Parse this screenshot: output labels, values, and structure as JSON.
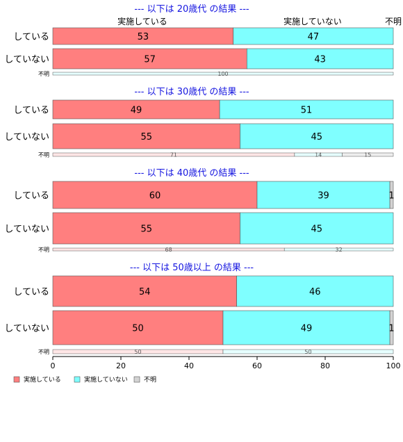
{
  "chart_data": {
    "type": "bar",
    "stacked": true,
    "orientation": "horizontal",
    "xlim": [
      0,
      100
    ],
    "x_ticks": [
      0,
      20,
      40,
      60,
      80,
      100
    ],
    "legend_position": "bottom-left",
    "top_labels": [
      "実施している",
      "実施していない",
      "不明"
    ],
    "colors": {
      "実施している": "#FF7F7F",
      "実施していない": "#7FFFFF",
      "不明": "#D3D3D3"
    },
    "legend": [
      {
        "name": "実施している",
        "color": "#FF7F7F"
      },
      {
        "name": "実施していない",
        "color": "#7FFFFF"
      },
      {
        "name": "不明",
        "color": "#D3D3D3"
      }
    ],
    "panels": [
      {
        "title": "--- 以下は 20歳代 の結果 ---",
        "rows": [
          {
            "label": "している",
            "values": [
              53,
              47,
              0
            ],
            "labels": [
              "53",
              "47",
              ""
            ]
          },
          {
            "label": "していない",
            "values": [
              57,
              43,
              0
            ],
            "labels": [
              "57",
              "43",
              ""
            ]
          },
          {
            "label": "不明",
            "small": true,
            "values": [
              0,
              100,
              0
            ],
            "labels": [
              "",
              "100",
              ""
            ]
          }
        ]
      },
      {
        "title": "--- 以下は 30歳代 の結果 ---",
        "rows": [
          {
            "label": "している",
            "values": [
              49,
              51,
              0
            ],
            "labels": [
              "49",
              "51",
              ""
            ]
          },
          {
            "label": "していない",
            "values": [
              55,
              45,
              0
            ],
            "labels": [
              "55",
              "45",
              ""
            ]
          },
          {
            "label": "不明",
            "small": true,
            "values": [
              71,
              14,
              15
            ],
            "labels": [
              "71",
              "14",
              "15"
            ]
          }
        ]
      },
      {
        "title": "--- 以下は 40歳代 の結果 ---",
        "rows": [
          {
            "label": "している",
            "values": [
              60,
              39,
              1
            ],
            "labels": [
              "60",
              "39",
              "1"
            ]
          },
          {
            "label": "していない",
            "values": [
              55,
              45,
              0
            ],
            "labels": [
              "55",
              "45",
              ""
            ]
          },
          {
            "label": "不明",
            "small": true,
            "values": [
              68,
              32,
              0
            ],
            "labels": [
              "68",
              "32",
              ""
            ]
          }
        ]
      },
      {
        "title": "--- 以下は 50歳以上 の結果 ---",
        "rows": [
          {
            "label": "している",
            "values": [
              54,
              46,
              0
            ],
            "labels": [
              "54",
              "46",
              ""
            ]
          },
          {
            "label": "していない",
            "values": [
              50,
              49,
              1
            ],
            "labels": [
              "50",
              "49",
              "1"
            ]
          },
          {
            "label": "不明",
            "small": true,
            "values": [
              50,
              50,
              0
            ],
            "labels": [
              "50",
              "50",
              ""
            ]
          }
        ]
      }
    ]
  }
}
